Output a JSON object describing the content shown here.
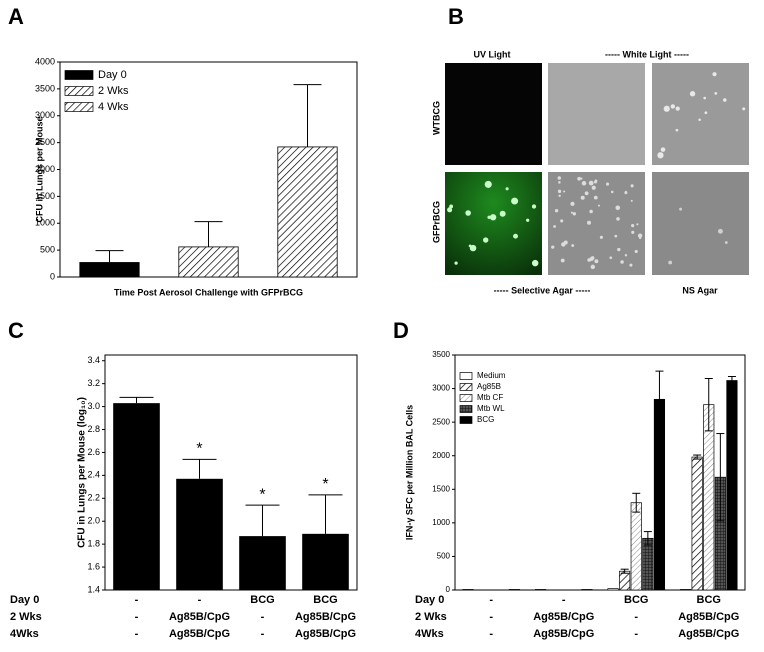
{
  "chart_data": [
    {
      "type": "bar",
      "panel_label": "A",
      "ylabel": "CFU in Lungs per Mouse",
      "xlabel": "Time Post Aerosol Challenge with GFPrBCG",
      "ylim": [
        0,
        4000
      ],
      "yticks": [
        0,
        500,
        1000,
        1500,
        2000,
        2500,
        3000,
        3500,
        4000
      ],
      "legend": "upper-left",
      "series": [
        {
          "name": "Day 0",
          "color": "#000000",
          "pattern": "solid",
          "values": [
            270
          ],
          "errors": [
            220
          ]
        },
        {
          "name": "2 Wks",
          "color": "#000000",
          "pattern": "hatch",
          "values": [
            560
          ],
          "errors": [
            470
          ]
        },
        {
          "name": "4 Wks",
          "color": "#000000",
          "pattern": "hatch",
          "values": [
            2420
          ],
          "errors": [
            1160
          ]
        }
      ]
    },
    {
      "type": "bar",
      "panel_label": "C",
      "ylabel": "CFU in Lungs per Mouse (log₁₀)",
      "ylim": [
        1.4,
        3.45
      ],
      "yticks": [
        1.4,
        1.6,
        1.8,
        {
          "value": 2,
          "label": "2.0"
        },
        2.2,
        2.4,
        2.6,
        2.8,
        {
          "value": 3,
          "label": "3.0"
        },
        3.2,
        3.4
      ],
      "color": "#000000",
      "values": [
        3.03,
        2.37,
        1.87,
        1.89
      ],
      "errors": [
        0.05,
        0.17,
        0.27,
        0.34
      ],
      "annotations": [
        null,
        "*",
        "*",
        "*"
      ],
      "treatment_table": {
        "row_labels": [
          "Day 0",
          "2 Wks",
          "4Wks"
        ],
        "rows": [
          [
            "-",
            "-",
            "BCG",
            "BCG"
          ],
          [
            "-",
            "Ag85B/CpG",
            "-",
            "Ag85B/CpG"
          ],
          [
            "-",
            "Ag85B/CpG",
            "-",
            "Ag85B/CpG"
          ]
        ]
      }
    },
    {
      "type": "grouped_bar",
      "panel_label": "D",
      "ylabel": "IFN-γ SFC per Million BAL Cells",
      "ylim": [
        0,
        3500
      ],
      "yticks": [
        0,
        500,
        1000,
        1500,
        2000,
        2500,
        3000,
        3500
      ],
      "legend": "upper-left",
      "series": [
        {
          "name": "Medium",
          "color": "#ffffff",
          "pattern": "solid",
          "values": [
            8,
            8,
            20,
            8
          ],
          "errors": [
            0,
            0,
            0,
            0
          ]
        },
        {
          "name": "Ag85B",
          "color": "#000000",
          "pattern": "hatch",
          "values": [
            0,
            0,
            280,
            1980
          ],
          "errors": [
            0,
            0,
            30,
            30
          ]
        },
        {
          "name": "Mtb CF",
          "color": "#000000",
          "pattern": "hatch-light",
          "values": [
            0,
            0,
            1300,
            2760
          ],
          "errors": [
            0,
            0,
            140,
            390
          ]
        },
        {
          "name": "Mtb WL",
          "color": "#000000",
          "pattern": "grid",
          "values": [
            0,
            0,
            770,
            1680
          ],
          "errors": [
            0,
            0,
            100,
            650
          ]
        },
        {
          "name": "BCG",
          "color": "#000000",
          "pattern": "solid",
          "values": [
            8,
            8,
            2840,
            3120
          ],
          "errors": [
            0,
            0,
            420,
            60
          ]
        }
      ],
      "treatment_table": {
        "row_labels": [
          "Day 0",
          "2 Wks",
          "4Wks"
        ],
        "rows": [
          [
            "-",
            "-",
            "BCG",
            "BCG"
          ],
          [
            "-",
            "Ag85B/CpG",
            "-",
            "Ag85B/CpG"
          ],
          [
            "-",
            "Ag85B/CpG",
            "-",
            "Ag85B/CpG"
          ]
        ]
      }
    }
  ],
  "panel_b": {
    "panel_label": "B",
    "column_headers": [
      "UV Light",
      "-----  White Light  -----"
    ],
    "row_labels": [
      "WTBCG",
      "GFPrBCG"
    ],
    "footers": [
      "-----  Selective Agar  -----",
      "NS Agar"
    ]
  }
}
